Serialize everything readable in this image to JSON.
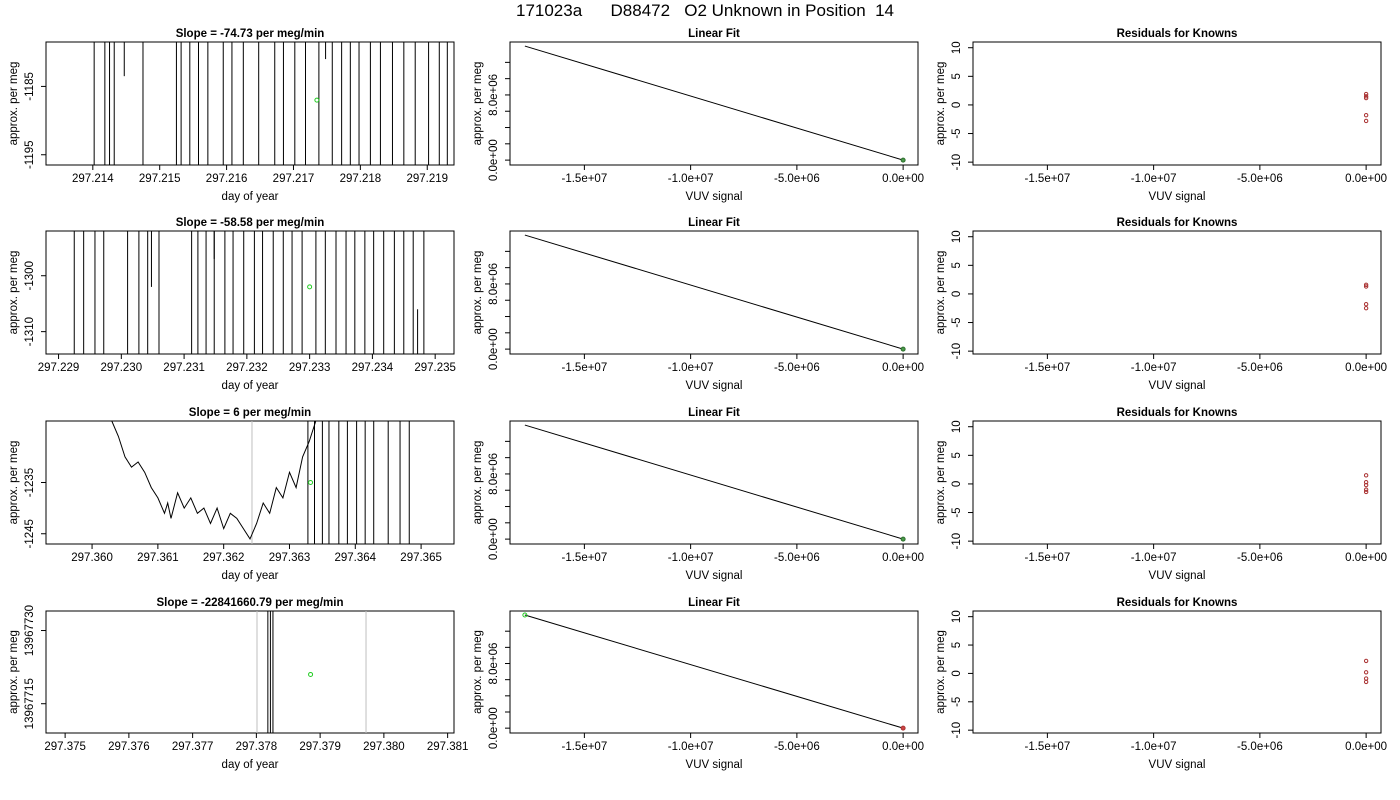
{
  "figure": {
    "title": "171023a      D88472   O2 Unknown in Position  14"
  },
  "colors": {
    "data": "#000000",
    "point": "#22cc22",
    "residual": "#aa3333",
    "grey": "#bfbfbf"
  },
  "chart_data": [
    {
      "type": "line",
      "row": 0,
      "col": 0,
      "title": "Slope =  -74.73  per meg/min",
      "xlabel": "day of year",
      "ylabel": "approx. per meg",
      "xlim": [
        297.2133,
        297.2194
      ],
      "ylim": [
        -1196.5,
        -1178.5
      ],
      "xticks": [
        297.214,
        297.215,
        297.216,
        297.217,
        297.218,
        297.219
      ],
      "xtick_labels": [
        "297.214",
        "297.215",
        "297.216",
        "297.217",
        "297.218",
        "297.219"
      ],
      "yticks": [
        -1185,
        -1195
      ],
      "ytick_labels": [
        "-1185",
        "-1195"
      ],
      "spikes": [
        297.21402,
        297.21418,
        297.21425,
        297.21432,
        297.21475,
        297.21525,
        297.21532,
        297.21545,
        297.21558,
        297.21572,
        297.21595,
        297.21608,
        297.21625,
        297.21648,
        297.21672,
        297.21685,
        297.21702,
        297.21718,
        297.21738,
        297.21758,
        297.21772,
        297.21785,
        297.21798,
        297.21815,
        297.2183,
        297.21848,
        297.21865,
        297.21882,
        297.21902,
        297.21918,
        297.2193,
        297.21945
      ],
      "minor_segments": [
        {
          "x": 297.21447,
          "y0": -1178.5,
          "y1": -1183.5
        },
        {
          "x": 297.21748,
          "y0": -1178.5,
          "y1": -1181
        }
      ],
      "points": [
        {
          "x": 297.21735,
          "y": -1187
        }
      ]
    },
    {
      "type": "line",
      "row": 0,
      "col": 1,
      "title": "Linear Fit",
      "xlabel": "VUV signal",
      "ylabel": "approx. per meg",
      "xlim": [
        -18500000,
        700000
      ],
      "ylim": [
        -600000,
        14500000
      ],
      "xticks": [
        -15000000,
        -10000000,
        -5000000,
        0
      ],
      "xtick_labels": [
        "-1.5e+07",
        "-1.0e+07",
        "-5.0e+06",
        "0.0e+00"
      ],
      "yticks": [
        0,
        2000000,
        4000000,
        6000000,
        8000000,
        10000000,
        12000000
      ],
      "ytick_labels": [
        "0.0e+00",
        "",
        "",
        "",
        "8.0e+06",
        "",
        ""
      ],
      "line": [
        [
          -17800000,
          14000000
        ],
        [
          0,
          0
        ]
      ],
      "points": [
        {
          "x": 0,
          "y": 0
        }
      ],
      "point_style": "dark"
    },
    {
      "type": "scatter",
      "row": 0,
      "col": 2,
      "title": "Residuals for Knowns",
      "xlabel": "VUV signal",
      "ylabel": "approx. per meg",
      "xlim": [
        -18500000,
        700000
      ],
      "ylim": [
        -10.5,
        11
      ],
      "xticks": [
        -15000000,
        -10000000,
        -5000000,
        0
      ],
      "xtick_labels": [
        "-1.5e+07",
        "-1.0e+07",
        "-5.0e+06",
        "0.0e+00"
      ],
      "yticks": [
        -10,
        -5,
        0,
        5,
        10
      ],
      "ytick_labels": [
        "-10",
        "-5",
        "0",
        "5",
        "10"
      ],
      "points": [
        {
          "x": 0,
          "y": 1.9
        },
        {
          "x": 0,
          "y": 1.5
        },
        {
          "x": 0,
          "y": 1.2
        },
        {
          "x": 0,
          "y": -1.8
        },
        {
          "x": 0,
          "y": -2.8
        }
      ]
    },
    {
      "type": "line",
      "row": 1,
      "col": 0,
      "title": "Slope =  -58.58  per meg/min",
      "xlabel": "day of year",
      "ylabel": "approx. per meg",
      "xlim": [
        297.2288,
        297.2353
      ],
      "ylim": [
        -1314,
        -1292
      ],
      "xticks": [
        297.229,
        297.23,
        297.231,
        297.232,
        297.233,
        297.234,
        297.235
      ],
      "xtick_labels": [
        "297.229",
        "297.230",
        "297.231",
        "297.232",
        "297.233",
        "297.234",
        "297.235"
      ],
      "yticks": [
        -1300,
        -1310
      ],
      "ytick_labels": [
        "-1300",
        "-1310"
      ],
      "spikes": [
        297.22925,
        297.2294,
        297.22958,
        297.22972,
        297.2301,
        297.23028,
        297.23042,
        297.2306,
        297.23112,
        297.23122,
        297.23135,
        297.23148,
        297.23165,
        297.23178,
        297.23195,
        297.23212,
        297.23225,
        297.23242,
        297.23258,
        297.23272,
        297.23288,
        297.2331,
        297.23325,
        297.23342,
        297.23358,
        297.23372,
        297.23388,
        297.23402,
        297.23418,
        297.23435,
        297.2345,
        297.23465,
        297.23482
      ],
      "minor_segments": [
        {
          "x": 297.23048,
          "y0": -1292,
          "y1": -1302
        },
        {
          "x": 297.23148,
          "y0": -1292,
          "y1": -1297
        },
        {
          "x": 297.23472,
          "y0": -1306,
          "y1": -1314
        }
      ],
      "points": [
        {
          "x": 297.233,
          "y": -1302
        }
      ]
    },
    {
      "type": "line",
      "row": 1,
      "col": 1,
      "title": "Linear Fit",
      "xlabel": "VUV signal",
      "ylabel": "approx. per meg",
      "xlim": [
        -18500000,
        700000
      ],
      "ylim": [
        -600000,
        14500000
      ],
      "xticks": [
        -15000000,
        -10000000,
        -5000000,
        0
      ],
      "xtick_labels": [
        "-1.5e+07",
        "-1.0e+07",
        "-5.0e+06",
        "0.0e+00"
      ],
      "yticks": [
        0,
        2000000,
        4000000,
        6000000,
        8000000,
        10000000,
        12000000
      ],
      "ytick_labels": [
        "0.0e+00",
        "",
        "",
        "",
        "8.0e+06",
        "",
        ""
      ],
      "line": [
        [
          -17800000,
          14000000
        ],
        [
          0,
          0
        ]
      ],
      "points": [
        {
          "x": 0,
          "y": 0
        }
      ],
      "point_style": "dark"
    },
    {
      "type": "scatter",
      "row": 1,
      "col": 2,
      "title": "Residuals for Knowns",
      "xlabel": "VUV signal",
      "ylabel": "approx. per meg",
      "xlim": [
        -18500000,
        700000
      ],
      "ylim": [
        -10.5,
        11
      ],
      "xticks": [
        -15000000,
        -10000000,
        -5000000,
        0
      ],
      "xtick_labels": [
        "-1.5e+07",
        "-1.0e+07",
        "-5.0e+06",
        "0.0e+00"
      ],
      "yticks": [
        -10,
        -5,
        0,
        5,
        10
      ],
      "ytick_labels": [
        "-10",
        "-5",
        "0",
        "5",
        "10"
      ],
      "points": [
        {
          "x": 0,
          "y": 1.6
        },
        {
          "x": 0,
          "y": 1.3
        },
        {
          "x": 0,
          "y": -1.8
        },
        {
          "x": 0,
          "y": -2.5
        }
      ]
    },
    {
      "type": "line",
      "row": 2,
      "col": 0,
      "title": "Slope =  6  per meg/min",
      "xlabel": "day of year",
      "ylabel": "approx. per meg",
      "xlim": [
        297.3593,
        297.3655
      ],
      "ylim": [
        -1247,
        -1223
      ],
      "xticks": [
        297.36,
        297.361,
        297.362,
        297.363,
        297.364,
        297.365
      ],
      "xtick_labels": [
        "297.360",
        "297.361",
        "297.362",
        "297.363",
        "297.364",
        "297.365"
      ],
      "yticks": [
        -1235,
        -1245
      ],
      "ytick_labels": [
        "-1235",
        "-1245"
      ],
      "grey_lines": [
        297.36243
      ],
      "trace": [
        [
          297.3603,
          -1223
        ],
        [
          297.3604,
          -1226
        ],
        [
          297.3605,
          -1230
        ],
        [
          297.3606,
          -1232
        ],
        [
          297.3607,
          -1231
        ],
        [
          297.3608,
          -1233
        ],
        [
          297.3609,
          -1236
        ],
        [
          297.361,
          -1238
        ],
        [
          297.3611,
          -1241
        ],
        [
          297.36115,
          -1239
        ],
        [
          297.3612,
          -1242
        ],
        [
          297.3613,
          -1237
        ],
        [
          297.3614,
          -1240
        ],
        [
          297.3615,
          -1238
        ],
        [
          297.3616,
          -1241
        ],
        [
          297.3617,
          -1240
        ],
        [
          297.3618,
          -1243
        ],
        [
          297.3619,
          -1240
        ],
        [
          297.362,
          -1244
        ],
        [
          297.3621,
          -1241
        ],
        [
          297.3622,
          -1242
        ],
        [
          297.3623,
          -1244
        ],
        [
          297.3624,
          -1246
        ],
        [
          297.3625,
          -1243
        ],
        [
          297.3626,
          -1239
        ],
        [
          297.3627,
          -1241
        ],
        [
          297.3628,
          -1236
        ],
        [
          297.3629,
          -1238
        ],
        [
          297.363,
          -1233
        ],
        [
          297.3631,
          -1236
        ],
        [
          297.3632,
          -1230
        ],
        [
          297.3633,
          -1227
        ],
        [
          297.3634,
          -1223
        ]
      ],
      "spikes": [
        297.36328,
        297.36338,
        297.3635,
        297.3636,
        297.36375,
        297.36388,
        297.36402,
        297.36415,
        297.36428,
        297.3645,
        297.36468,
        297.36482
      ],
      "points": [
        {
          "x": 297.36332,
          "y": -1235
        }
      ]
    },
    {
      "type": "line",
      "row": 2,
      "col": 1,
      "title": "Linear Fit",
      "xlabel": "VUV signal",
      "ylabel": "approx. per meg",
      "xlim": [
        -18500000,
        700000
      ],
      "ylim": [
        -600000,
        14500000
      ],
      "xticks": [
        -15000000,
        -10000000,
        -5000000,
        0
      ],
      "xtick_labels": [
        "-1.5e+07",
        "-1.0e+07",
        "-5.0e+06",
        "0.0e+00"
      ],
      "yticks": [
        0,
        2000000,
        4000000,
        6000000,
        8000000,
        10000000,
        12000000
      ],
      "ytick_labels": [
        "0.0e+00",
        "",
        "",
        "",
        "8.0e+06",
        "",
        ""
      ],
      "line": [
        [
          -17800000,
          14000000
        ],
        [
          0,
          0
        ]
      ],
      "points": [
        {
          "x": 0,
          "y": 0
        }
      ],
      "point_style": "dark"
    },
    {
      "type": "scatter",
      "row": 2,
      "col": 2,
      "title": "Residuals for Knowns",
      "xlabel": "VUV signal",
      "ylabel": "approx. per meg",
      "xlim": [
        -18500000,
        700000
      ],
      "ylim": [
        -10.5,
        11
      ],
      "xticks": [
        -15000000,
        -10000000,
        -5000000,
        0
      ],
      "xtick_labels": [
        "-1.5e+07",
        "-1.0e+07",
        "-5.0e+06",
        "0.0e+00"
      ],
      "yticks": [
        -10,
        -5,
        0,
        5,
        10
      ],
      "ytick_labels": [
        "-10",
        "-5",
        "0",
        "5",
        "10"
      ],
      "points": [
        {
          "x": 0,
          "y": 1.5
        },
        {
          "x": 0,
          "y": 0.3
        },
        {
          "x": 0,
          "y": -0.2
        },
        {
          "x": 0,
          "y": -1.0
        },
        {
          "x": 0,
          "y": -1.4
        }
      ]
    },
    {
      "type": "line",
      "row": 3,
      "col": 0,
      "title": "Slope =  -22841660.79  per meg/min",
      "xlabel": "day of year",
      "ylabel": "approx. per meg",
      "xlim": [
        297.3747,
        297.3811
      ],
      "ylim": [
        13967709,
        13967734
      ],
      "xticks": [
        297.375,
        297.376,
        297.377,
        297.378,
        297.379,
        297.38,
        297.381
      ],
      "xtick_labels": [
        "297.375",
        "297.376",
        "297.377",
        "297.378",
        "297.379",
        "297.380",
        "297.381"
      ],
      "yticks": [
        13967730,
        13967715
      ],
      "ytick_labels": [
        "13967730",
        "13967715"
      ],
      "grey_lines": [
        297.37801,
        297.37972
      ],
      "spikes": [
        297.37818,
        297.37822,
        297.37826
      ],
      "points": [
        {
          "x": 297.37885,
          "y": 13967721
        }
      ]
    },
    {
      "type": "line",
      "row": 3,
      "col": 1,
      "title": "Linear Fit",
      "xlabel": "VUV signal",
      "ylabel": "approx. per meg",
      "xlim": [
        -18500000,
        700000
      ],
      "ylim": [
        -600000,
        14500000
      ],
      "xticks": [
        -15000000,
        -10000000,
        -5000000,
        0
      ],
      "xtick_labels": [
        "-1.5e+07",
        "-1.0e+07",
        "-5.0e+06",
        "0.0e+00"
      ],
      "yticks": [
        0,
        2000000,
        4000000,
        6000000,
        8000000,
        10000000,
        12000000
      ],
      "ytick_labels": [
        "0.0e+00",
        "",
        "",
        "",
        "8.0e+06",
        "",
        ""
      ],
      "line": [
        [
          -17800000,
          14000000
        ],
        [
          0,
          0
        ]
      ],
      "points": [
        {
          "x": -17800000,
          "y": 14000000
        },
        {
          "x": 0,
          "y": 0
        }
      ],
      "point_style": "green-red"
    },
    {
      "type": "scatter",
      "row": 3,
      "col": 2,
      "title": "Residuals for Knowns",
      "xlabel": "VUV signal",
      "ylabel": "approx. per meg",
      "xlim": [
        -18500000,
        700000
      ],
      "ylim": [
        -10.5,
        11
      ],
      "xticks": [
        -15000000,
        -10000000,
        -5000000,
        0
      ],
      "xtick_labels": [
        "-1.5e+07",
        "-1.0e+07",
        "-5.0e+06",
        "0.0e+00"
      ],
      "yticks": [
        -10,
        -5,
        0,
        5,
        10
      ],
      "ytick_labels": [
        "-10",
        "-5",
        "0",
        "5",
        "10"
      ],
      "points": [
        {
          "x": 0,
          "y": 2.2
        },
        {
          "x": 0,
          "y": 0.2
        },
        {
          "x": 0,
          "y": -0.9
        },
        {
          "x": 0,
          "y": -1.5
        }
      ]
    }
  ]
}
